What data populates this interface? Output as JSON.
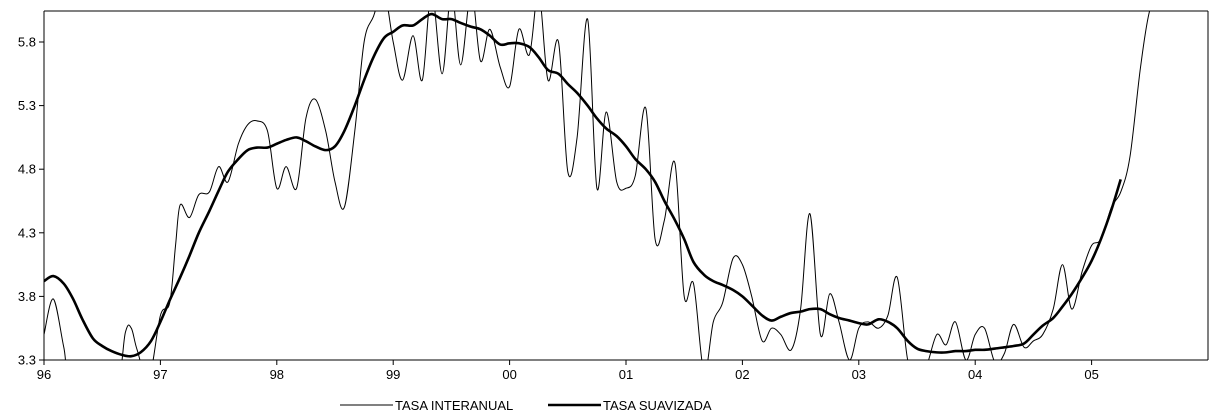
{
  "chart_data": {
    "type": "line",
    "title": "",
    "xlabel": "",
    "ylabel": "",
    "grid": false,
    "legend_placement": "bottom-center",
    "xlim": [
      96,
      106
    ],
    "ylim": [
      3.3,
      6.05
    ],
    "x_ticks": [
      96,
      97,
      98,
      99,
      100,
      101,
      102,
      103,
      104,
      105
    ],
    "x_tick_labels": [
      "96",
      "97",
      "98",
      "99",
      "00",
      "01",
      "02",
      "03",
      "04",
      "05"
    ],
    "y_ticks": [
      3.3,
      3.8,
      4.3,
      4.8,
      5.3,
      5.8
    ],
    "y_tick_labels": [
      "3.3",
      "3.8",
      "4.3",
      "4.8",
      "5.3",
      "5.8"
    ],
    "series": [
      {
        "name": "TASA INTERANUAL",
        "color": "#000000",
        "stroke": "thin",
        "points": [
          [
            96.0,
            3.5
          ],
          [
            96.08,
            3.78
          ],
          [
            96.17,
            3.4
          ],
          [
            96.25,
            3.05
          ],
          [
            96.6,
            3.05
          ],
          [
            96.7,
            3.52
          ],
          [
            96.75,
            3.55
          ],
          [
            96.8,
            3.38
          ],
          [
            96.9,
            3.15
          ],
          [
            97.0,
            3.65
          ],
          [
            97.08,
            3.75
          ],
          [
            97.13,
            4.2
          ],
          [
            97.17,
            4.52
          ],
          [
            97.25,
            4.42
          ],
          [
            97.33,
            4.6
          ],
          [
            97.42,
            4.62
          ],
          [
            97.5,
            4.82
          ],
          [
            97.58,
            4.7
          ],
          [
            97.67,
            5.0
          ],
          [
            97.75,
            5.15
          ],
          [
            97.83,
            5.18
          ],
          [
            97.92,
            5.1
          ],
          [
            98.0,
            4.65
          ],
          [
            98.08,
            4.82
          ],
          [
            98.17,
            4.65
          ],
          [
            98.25,
            5.2
          ],
          [
            98.33,
            5.35
          ],
          [
            98.42,
            5.1
          ],
          [
            98.5,
            4.7
          ],
          [
            98.58,
            4.5
          ],
          [
            98.67,
            5.1
          ],
          [
            98.75,
            5.8
          ],
          [
            98.83,
            6.0
          ],
          [
            98.92,
            6.2
          ],
          [
            99.0,
            5.8
          ],
          [
            99.08,
            5.5
          ],
          [
            99.17,
            5.85
          ],
          [
            99.25,
            5.5
          ],
          [
            99.33,
            6.2
          ],
          [
            99.42,
            5.55
          ],
          [
            99.5,
            6.2
          ],
          [
            99.58,
            5.62
          ],
          [
            99.67,
            6.2
          ],
          [
            99.75,
            5.65
          ],
          [
            99.83,
            5.9
          ],
          [
            99.92,
            5.6
          ],
          [
            100.0,
            5.45
          ],
          [
            100.08,
            5.9
          ],
          [
            100.17,
            5.7
          ],
          [
            100.25,
            6.2
          ],
          [
            100.33,
            5.5
          ],
          [
            100.42,
            5.8
          ],
          [
            100.5,
            4.78
          ],
          [
            100.58,
            5.05
          ],
          [
            100.67,
            5.98
          ],
          [
            100.75,
            4.65
          ],
          [
            100.83,
            5.25
          ],
          [
            100.92,
            4.7
          ],
          [
            101.0,
            4.65
          ],
          [
            101.08,
            4.75
          ],
          [
            101.17,
            5.28
          ],
          [
            101.25,
            4.25
          ],
          [
            101.33,
            4.4
          ],
          [
            101.42,
            4.85
          ],
          [
            101.5,
            3.8
          ],
          [
            101.58,
            3.9
          ],
          [
            101.67,
            3.2
          ],
          [
            101.75,
            3.6
          ],
          [
            101.83,
            3.75
          ],
          [
            101.92,
            4.1
          ],
          [
            102.0,
            4.05
          ],
          [
            102.08,
            3.8
          ],
          [
            102.17,
            3.45
          ],
          [
            102.25,
            3.55
          ],
          [
            102.33,
            3.5
          ],
          [
            102.42,
            3.38
          ],
          [
            102.5,
            3.7
          ],
          [
            102.58,
            4.45
          ],
          [
            102.67,
            3.5
          ],
          [
            102.75,
            3.82
          ],
          [
            102.83,
            3.6
          ],
          [
            102.92,
            3.3
          ],
          [
            103.0,
            3.55
          ],
          [
            103.08,
            3.6
          ],
          [
            103.17,
            3.55
          ],
          [
            103.25,
            3.65
          ],
          [
            103.33,
            3.95
          ],
          [
            103.42,
            3.3
          ],
          [
            103.5,
            3.2
          ],
          [
            103.58,
            3.25
          ],
          [
            103.67,
            3.5
          ],
          [
            103.75,
            3.42
          ],
          [
            103.83,
            3.6
          ],
          [
            103.92,
            3.3
          ],
          [
            104.0,
            3.5
          ],
          [
            104.08,
            3.55
          ],
          [
            104.17,
            3.28
          ],
          [
            104.25,
            3.35
          ],
          [
            104.33,
            3.58
          ],
          [
            104.42,
            3.4
          ],
          [
            104.5,
            3.45
          ],
          [
            104.58,
            3.5
          ],
          [
            104.67,
            3.7
          ],
          [
            104.75,
            4.05
          ],
          [
            104.83,
            3.7
          ],
          [
            104.92,
            4.0
          ],
          [
            105.0,
            4.2
          ],
          [
            105.08,
            4.25
          ],
          [
            105.17,
            4.5
          ],
          [
            105.25,
            4.62
          ],
          [
            105.33,
            4.9
          ],
          [
            105.42,
            5.6
          ],
          [
            105.5,
            6.05
          ],
          [
            105.6,
            6.2
          ]
        ]
      },
      {
        "name": "TASA SUAVIZADA",
        "color": "#000000",
        "stroke": "thick",
        "points": [
          [
            96.0,
            3.92
          ],
          [
            96.08,
            3.96
          ],
          [
            96.17,
            3.9
          ],
          [
            96.25,
            3.78
          ],
          [
            96.33,
            3.62
          ],
          [
            96.42,
            3.47
          ],
          [
            96.5,
            3.41
          ],
          [
            96.58,
            3.37
          ],
          [
            96.67,
            3.34
          ],
          [
            96.75,
            3.33
          ],
          [
            96.83,
            3.36
          ],
          [
            96.92,
            3.45
          ],
          [
            97.0,
            3.6
          ],
          [
            97.08,
            3.77
          ],
          [
            97.17,
            3.95
          ],
          [
            97.25,
            4.12
          ],
          [
            97.33,
            4.3
          ],
          [
            97.42,
            4.47
          ],
          [
            97.5,
            4.63
          ],
          [
            97.58,
            4.78
          ],
          [
            97.67,
            4.88
          ],
          [
            97.75,
            4.95
          ],
          [
            97.83,
            4.97
          ],
          [
            97.92,
            4.97
          ],
          [
            98.0,
            5.0
          ],
          [
            98.08,
            5.03
          ],
          [
            98.17,
            5.05
          ],
          [
            98.25,
            5.02
          ],
          [
            98.33,
            4.98
          ],
          [
            98.42,
            4.95
          ],
          [
            98.5,
            4.98
          ],
          [
            98.58,
            5.1
          ],
          [
            98.67,
            5.3
          ],
          [
            98.75,
            5.5
          ],
          [
            98.83,
            5.68
          ],
          [
            98.92,
            5.83
          ],
          [
            99.0,
            5.88
          ],
          [
            99.08,
            5.93
          ],
          [
            99.17,
            5.93
          ],
          [
            99.25,
            5.98
          ],
          [
            99.33,
            6.02
          ],
          [
            99.42,
            5.98
          ],
          [
            99.5,
            5.98
          ],
          [
            99.58,
            5.95
          ],
          [
            99.67,
            5.92
          ],
          [
            99.75,
            5.9
          ],
          [
            99.83,
            5.85
          ],
          [
            99.92,
            5.78
          ],
          [
            100.0,
            5.79
          ],
          [
            100.08,
            5.79
          ],
          [
            100.17,
            5.76
          ],
          [
            100.25,
            5.68
          ],
          [
            100.33,
            5.58
          ],
          [
            100.42,
            5.55
          ],
          [
            100.5,
            5.47
          ],
          [
            100.58,
            5.4
          ],
          [
            100.67,
            5.3
          ],
          [
            100.75,
            5.2
          ],
          [
            100.83,
            5.12
          ],
          [
            100.92,
            5.06
          ],
          [
            101.0,
            4.98
          ],
          [
            101.08,
            4.88
          ],
          [
            101.17,
            4.8
          ],
          [
            101.25,
            4.7
          ],
          [
            101.33,
            4.55
          ],
          [
            101.42,
            4.4
          ],
          [
            101.5,
            4.25
          ],
          [
            101.58,
            4.07
          ],
          [
            101.67,
            3.97
          ],
          [
            101.75,
            3.92
          ],
          [
            101.83,
            3.89
          ],
          [
            101.92,
            3.85
          ],
          [
            102.0,
            3.8
          ],
          [
            102.08,
            3.73
          ],
          [
            102.17,
            3.65
          ],
          [
            102.25,
            3.61
          ],
          [
            102.33,
            3.64
          ],
          [
            102.42,
            3.67
          ],
          [
            102.5,
            3.68
          ],
          [
            102.58,
            3.7
          ],
          [
            102.67,
            3.7
          ],
          [
            102.75,
            3.66
          ],
          [
            102.83,
            3.63
          ],
          [
            102.92,
            3.61
          ],
          [
            103.0,
            3.59
          ],
          [
            103.08,
            3.58
          ],
          [
            103.17,
            3.62
          ],
          [
            103.25,
            3.6
          ],
          [
            103.33,
            3.55
          ],
          [
            103.42,
            3.45
          ],
          [
            103.5,
            3.39
          ],
          [
            103.58,
            3.37
          ],
          [
            103.67,
            3.36
          ],
          [
            103.75,
            3.36
          ],
          [
            103.83,
            3.37
          ],
          [
            103.92,
            3.37
          ],
          [
            104.0,
            3.38
          ],
          [
            104.08,
            3.38
          ],
          [
            104.17,
            3.39
          ],
          [
            104.25,
            3.4
          ],
          [
            104.33,
            3.41
          ],
          [
            104.42,
            3.43
          ],
          [
            104.5,
            3.5
          ],
          [
            104.58,
            3.57
          ],
          [
            104.67,
            3.63
          ],
          [
            104.75,
            3.72
          ],
          [
            104.83,
            3.82
          ],
          [
            104.92,
            3.95
          ],
          [
            105.0,
            4.08
          ],
          [
            105.08,
            4.25
          ],
          [
            105.17,
            4.48
          ],
          [
            105.25,
            4.72
          ]
        ]
      }
    ]
  }
}
